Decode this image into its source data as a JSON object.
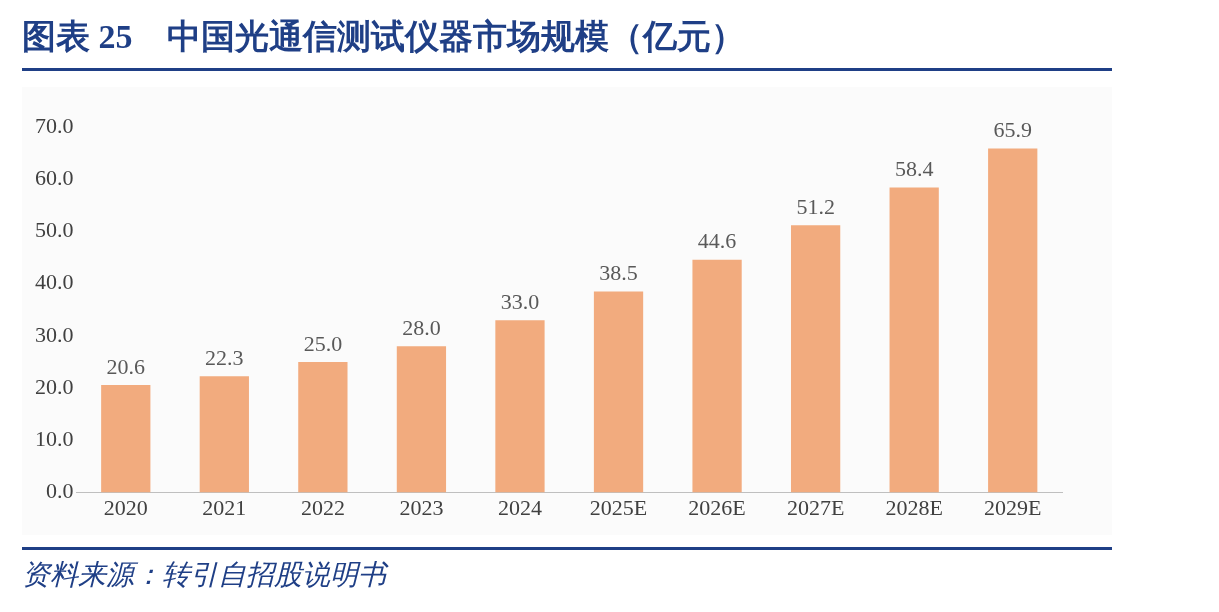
{
  "chart_data": {
    "type": "bar",
    "title": "图表 25　中国光通信测试仪器市场规模（亿元）",
    "categories": [
      "2020",
      "2021",
      "2022",
      "2023",
      "2024",
      "2025E",
      "2026E",
      "2027E",
      "2028E",
      "2029E"
    ],
    "values": [
      20.6,
      22.3,
      25.0,
      28.0,
      33.0,
      38.5,
      44.6,
      51.2,
      58.4,
      65.9
    ],
    "value_labels": [
      "20.6",
      "22.3",
      "25.0",
      "28.0",
      "33.0",
      "38.5",
      "44.6",
      "51.2",
      "58.4",
      "65.9"
    ],
    "color": "#f2ab7e",
    "ylim": [
      0,
      70
    ],
    "yticks": [
      {
        "value": 0,
        "label": "0.0"
      },
      {
        "value": 10,
        "label": "10.0"
      },
      {
        "value": 20,
        "label": "20.0"
      },
      {
        "value": 30,
        "label": "30.0"
      },
      {
        "value": 40,
        "label": "40.0"
      },
      {
        "value": 50,
        "label": "50.0"
      },
      {
        "value": 60,
        "label": "60.0"
      },
      {
        "value": 70,
        "label": "70.0"
      }
    ],
    "grid": false,
    "legend": false,
    "annotations": [
      "资料来源：转引自招股说明书"
    ]
  }
}
